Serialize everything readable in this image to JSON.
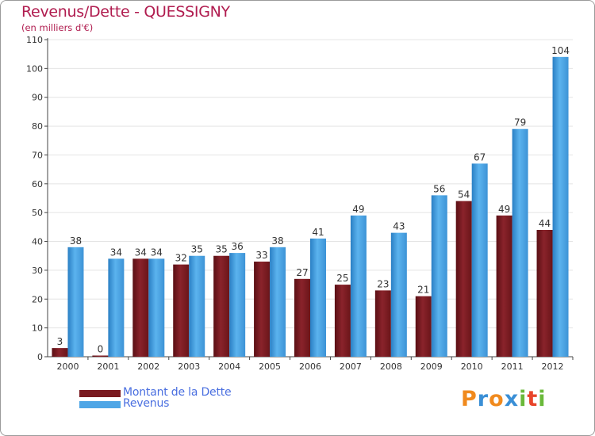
{
  "title": "Revenus/Dette - QUESSIGNY",
  "subtitle": "(en milliers d'€)",
  "colors": {
    "title": "#b01c4f",
    "dette": "#7a1a20",
    "revenus": "#4fa6e6",
    "legend_text": "#4a6fe0",
    "axis": "#444444",
    "grid": "#e4e4e4"
  },
  "legend": {
    "dette_label": "Montant de la Dette",
    "revenus_label": "Revenus"
  },
  "logo": {
    "text": "Proxiti",
    "letters": [
      "P",
      "r",
      "o",
      "x",
      "i",
      "t",
      "i"
    ],
    "letter_colors": [
      "#f08a1e",
      "#3a8fd6",
      "#f08a1e",
      "#3a8fd6",
      "#6ab93a",
      "#e8452b",
      "#6ab93a"
    ]
  },
  "chart_data": {
    "type": "bar",
    "title": "Revenus/Dette - QUESSIGNY",
    "ylabel": "(en milliers d'€)",
    "xlabel": "",
    "categories": [
      "2000",
      "2001",
      "2002",
      "2003",
      "2004",
      "2005",
      "2006",
      "2007",
      "2008",
      "2009",
      "2010",
      "2011",
      "2012"
    ],
    "series": [
      {
        "name": "Montant de la Dette",
        "values": [
          3,
          0,
          34,
          32,
          35,
          33,
          27,
          25,
          23,
          21,
          54,
          49,
          44
        ]
      },
      {
        "name": "Revenus",
        "values": [
          38,
          34,
          34,
          35,
          36,
          38,
          41,
          49,
          43,
          56,
          67,
          79,
          104
        ]
      }
    ],
    "ylim": [
      0,
      110
    ],
    "yticks": [
      0,
      10,
      20,
      30,
      40,
      50,
      60,
      70,
      80,
      90,
      100,
      110
    ],
    "grid": true,
    "legend_position": "bottom-left"
  }
}
